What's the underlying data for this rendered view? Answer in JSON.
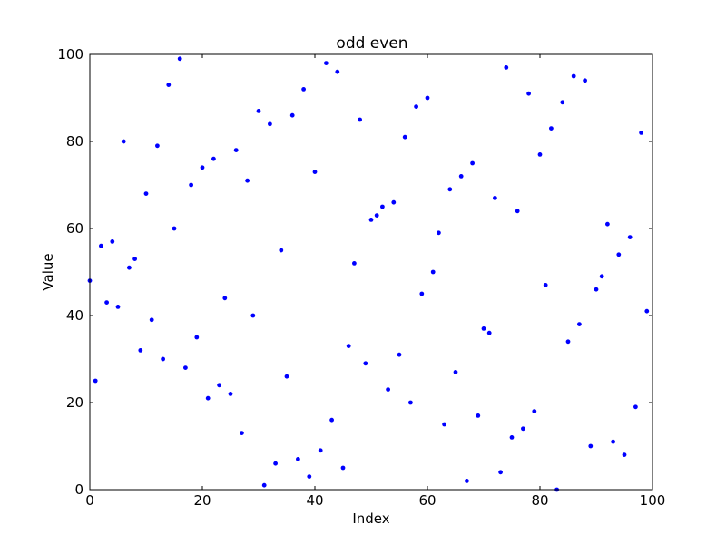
{
  "chart_data": {
    "type": "scatter",
    "title": "odd even",
    "xlabel": "Index",
    "ylabel": "Value",
    "xlim": [
      0,
      100
    ],
    "ylim": [
      0,
      100
    ],
    "xticks": [
      0,
      20,
      40,
      60,
      80,
      100
    ],
    "yticks": [
      0,
      20,
      40,
      60,
      80,
      100
    ],
    "grid": false,
    "marker_color": "#0000ff",
    "series": [
      {
        "x": [
          0,
          1,
          2,
          3,
          4,
          5,
          6,
          7,
          8,
          9,
          10,
          11,
          12,
          13,
          14,
          15,
          16,
          17,
          18,
          19,
          20,
          21,
          22,
          23,
          24,
          25,
          26,
          27,
          28,
          29,
          30,
          31,
          32,
          33,
          34,
          35,
          36,
          37,
          38,
          39,
          40,
          41,
          42,
          43,
          44,
          45,
          46,
          47,
          48,
          49,
          50,
          51,
          52,
          53,
          54,
          55,
          56,
          57,
          58,
          59,
          60,
          61,
          62,
          63,
          64,
          65,
          66,
          67,
          68,
          69,
          70,
          71,
          72,
          73,
          74,
          75,
          76,
          77,
          78,
          79,
          80,
          81,
          82,
          83,
          84,
          85,
          86,
          87,
          88,
          89,
          90,
          91,
          92,
          93,
          94,
          95,
          96,
          97,
          98,
          99
        ],
        "y": [
          48,
          25,
          56,
          43,
          57,
          42,
          80,
          51,
          53,
          32,
          68,
          39,
          79,
          30,
          93,
          60,
          99,
          28,
          70,
          35,
          74,
          21,
          76,
          24,
          44,
          22,
          78,
          13,
          71,
          40,
          87,
          1,
          84,
          6,
          55,
          26,
          86,
          7,
          92,
          3,
          73,
          9,
          98,
          16,
          96,
          5,
          33,
          52,
          85,
          29,
          62,
          63,
          65,
          23,
          66,
          31,
          81,
          20,
          88,
          45,
          90,
          50,
          59,
          15,
          69,
          27,
          72,
          2,
          75,
          17,
          37,
          36,
          67,
          4,
          97,
          12,
          64,
          14,
          91,
          18,
          77,
          47,
          83,
          0,
          89,
          34,
          95,
          38,
          94,
          10,
          46,
          49,
          61,
          11,
          54,
          8,
          58,
          19,
          82,
          41
        ]
      }
    ]
  }
}
